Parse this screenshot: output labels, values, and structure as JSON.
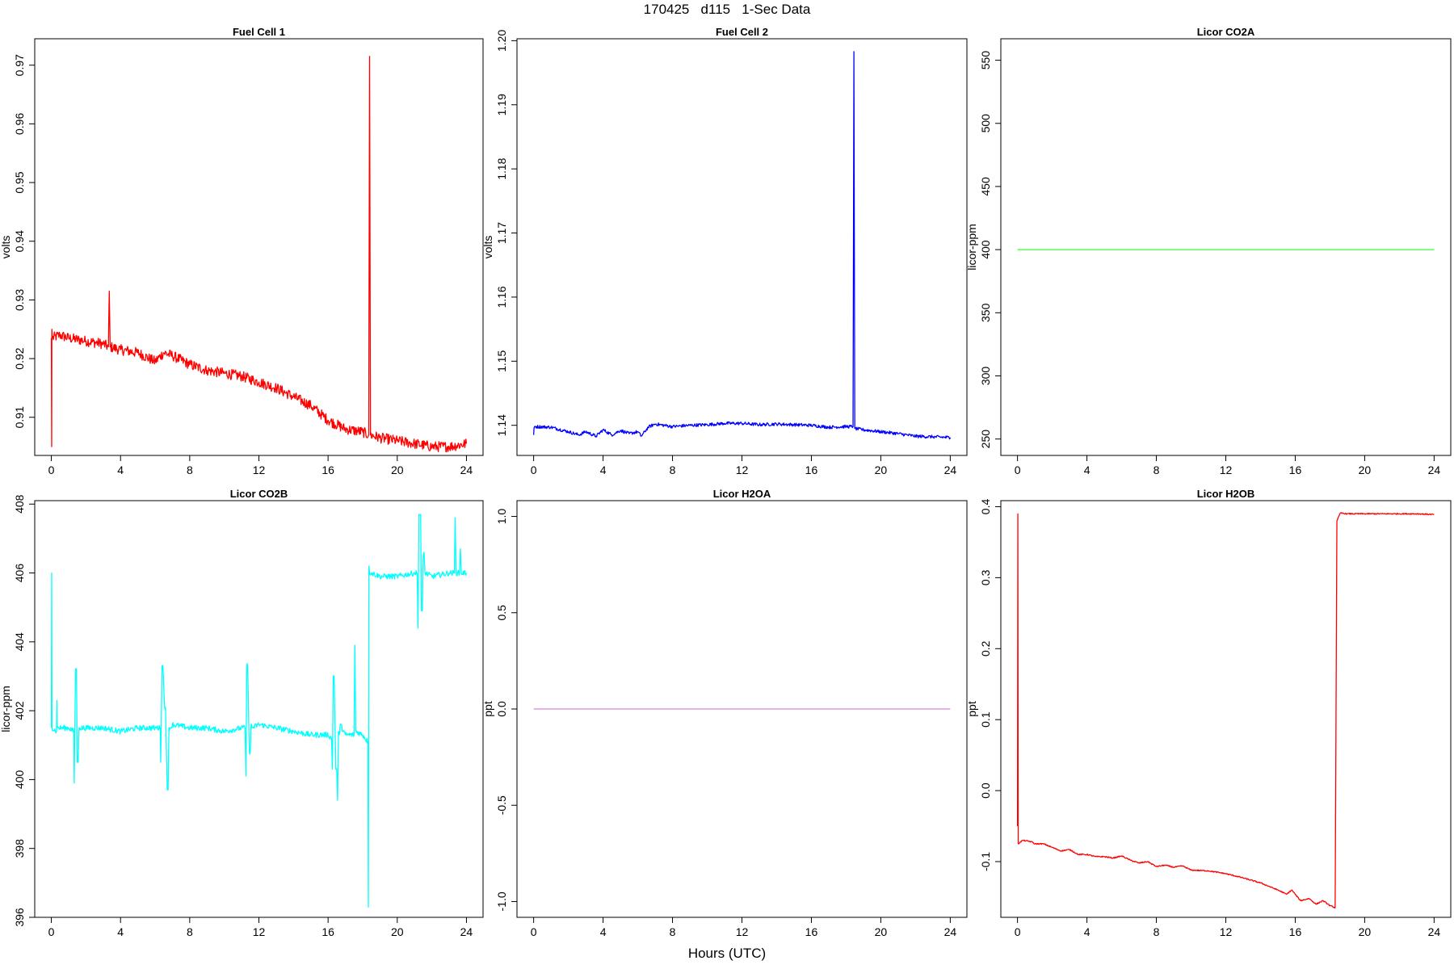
{
  "title": "170425   d115   1-Sec Data",
  "xlabel": "Hours (UTC)",
  "chart_data": [
    {
      "type": "line",
      "title": "Fuel Cell 1",
      "ylabel": "volts",
      "xlim": [
        0,
        24
      ],
      "ylim": [
        0.9035,
        0.9745
      ],
      "xticks": [
        0,
        4,
        8,
        12,
        16,
        20,
        24
      ],
      "xtick_labels": [
        "0",
        "4",
        "8",
        "12",
        "16",
        "20",
        "24"
      ],
      "yticks": [
        0.91,
        0.92,
        0.93,
        0.94,
        0.95,
        0.96,
        0.97
      ],
      "ytick_labels": [
        "0.91",
        "0.92",
        "0.93",
        "0.94",
        "0.95",
        "0.96",
        "0.97"
      ],
      "color": "#ff0000",
      "noise": 0.0009,
      "x": [
        0,
        0.02,
        0.03,
        0.05,
        0.5,
        1,
        2,
        3,
        3.3,
        3.35,
        3.4,
        4,
        5,
        6,
        6.5,
        7,
        8,
        9,
        10,
        11,
        12,
        13,
        14,
        15,
        16,
        17,
        18,
        18.35,
        18.4,
        18.45,
        19,
        20,
        21,
        22,
        23,
        24
      ],
      "y": [
        0.9235,
        0.905,
        0.925,
        0.9235,
        0.924,
        0.9235,
        0.923,
        0.9225,
        0.922,
        0.9315,
        0.922,
        0.9215,
        0.921,
        0.9195,
        0.921,
        0.9205,
        0.919,
        0.918,
        0.9175,
        0.917,
        0.916,
        0.915,
        0.9135,
        0.912,
        0.9095,
        0.908,
        0.9075,
        0.907,
        0.9715,
        0.907,
        0.9065,
        0.906,
        0.9055,
        0.905,
        0.905,
        0.9055
      ]
    },
    {
      "type": "line",
      "title": "Fuel Cell 2",
      "ylabel": "volts",
      "xlim": [
        0,
        24
      ],
      "ylim": [
        1.1353,
        1.2003
      ],
      "xticks": [
        0,
        4,
        8,
        12,
        16,
        20,
        24
      ],
      "xtick_labels": [
        "0",
        "4",
        "8",
        "12",
        "16",
        "20",
        "24"
      ],
      "yticks": [
        1.14,
        1.15,
        1.16,
        1.17,
        1.18,
        1.19,
        1.2
      ],
      "ytick_labels": [
        "1.14",
        "1.15",
        "1.16",
        "1.17",
        "1.18",
        "1.19",
        "1.20"
      ],
      "color": "#0000ff",
      "noise": 0.00025,
      "x": [
        0,
        0.02,
        0.05,
        1,
        2,
        2.6,
        3,
        3.6,
        4,
        4.5,
        5,
        5.5,
        6,
        6.2,
        6.6,
        7,
        8,
        9,
        10,
        11,
        12,
        13,
        14,
        15,
        16,
        17,
        18,
        18.4,
        18.45,
        18.5,
        19,
        20,
        21,
        22,
        23,
        24
      ],
      "y": [
        1.1385,
        1.1395,
        1.1398,
        1.1397,
        1.139,
        1.1385,
        1.139,
        1.1383,
        1.1393,
        1.1385,
        1.1392,
        1.1387,
        1.139,
        1.1383,
        1.1397,
        1.1402,
        1.1398,
        1.14,
        1.1401,
        1.1403,
        1.1403,
        1.1401,
        1.1402,
        1.1401,
        1.14,
        1.1397,
        1.1398,
        1.1398,
        1.1983,
        1.1395,
        1.1393,
        1.139,
        1.1387,
        1.1383,
        1.1382,
        1.1381
      ]
    },
    {
      "type": "line",
      "title": "Licor CO2A",
      "ylabel": "licor-ppm",
      "xlim": [
        0,
        24
      ],
      "ylim": [
        237,
        567
      ],
      "xticks": [
        0,
        4,
        8,
        12,
        16,
        20,
        24
      ],
      "xtick_labels": [
        "0",
        "4",
        "8",
        "12",
        "16",
        "20",
        "24"
      ],
      "yticks": [
        250,
        300,
        350,
        400,
        450,
        500,
        550
      ],
      "ytick_labels": [
        "250",
        "300",
        "350",
        "400",
        "450",
        "500",
        "550"
      ],
      "color": "#00ff00",
      "noise": 0,
      "x": [
        0,
        24
      ],
      "y": [
        400,
        400
      ]
    },
    {
      "type": "line",
      "title": "Licor CO2B",
      "ylabel": "licor-ppm",
      "xlim": [
        0,
        24
      ],
      "ylim": [
        396,
        408.1
      ],
      "xticks": [
        0,
        4,
        8,
        12,
        16,
        20,
        24
      ],
      "xtick_labels": [
        "0",
        "4",
        "8",
        "12",
        "16",
        "20",
        "24"
      ],
      "yticks": [
        396,
        398,
        400,
        402,
        404,
        406,
        408
      ],
      "ytick_labels": [
        "396",
        "398",
        "400",
        "402",
        "404",
        "406",
        "408"
      ],
      "color": "#00ffff",
      "noise": 0.08,
      "x": [
        0,
        0.02,
        0.04,
        0.3,
        0.32,
        0.34,
        1,
        1.3,
        1.32,
        1.4,
        1.45,
        1.5,
        1.55,
        1.6,
        1.65,
        2,
        3,
        4,
        5,
        6,
        6.3,
        6.32,
        6.4,
        6.45,
        6.55,
        6.6,
        6.7,
        6.75,
        6.8,
        6.85,
        6.9,
        7,
        8,
        9,
        10,
        11,
        11.2,
        11.25,
        11.3,
        11.35,
        11.45,
        11.5,
        11.55,
        11.6,
        12,
        13,
        14,
        15,
        16,
        16.2,
        16.25,
        16.3,
        16.35,
        16.45,
        16.5,
        16.55,
        16.6,
        16.65,
        16.7,
        17,
        17.5,
        17.55,
        17.6,
        18,
        18.3,
        18.33,
        18.36,
        18.4,
        18.5,
        19,
        20,
        21,
        21.15,
        21.2,
        21.25,
        21.35,
        21.4,
        21.45,
        21.5,
        21.55,
        21.6,
        22,
        23,
        23.3,
        23.35,
        23.4,
        23.6,
        23.65,
        23.7,
        24
      ],
      "y": [
        401.5,
        406,
        401.5,
        401.4,
        402.3,
        401.5,
        401.5,
        401.4,
        399.9,
        403.2,
        403.2,
        400.5,
        400.5,
        401.5,
        401.5,
        401.5,
        401.5,
        401.4,
        401.5,
        401.5,
        401.5,
        400.5,
        403.3,
        403.3,
        402.1,
        402.1,
        399.7,
        399.7,
        401.5,
        401.5,
        401.5,
        401.6,
        401.5,
        401.5,
        401.4,
        401.5,
        401.5,
        400.1,
        403.3,
        403.3,
        400.8,
        400.8,
        401.6,
        401.5,
        401.6,
        401.5,
        401.4,
        401.3,
        401.3,
        401.2,
        400.3,
        403,
        403,
        400.3,
        400.3,
        399.4,
        401.4,
        401.3,
        401.6,
        401.3,
        401.3,
        403.9,
        401.4,
        401.3,
        401.1,
        396.3,
        406.2,
        406,
        406,
        405.9,
        405.9,
        406,
        406,
        404.4,
        407.7,
        407.7,
        404.9,
        404.9,
        406.5,
        406.6,
        406,
        405.9,
        406,
        406,
        407.6,
        406,
        406,
        406.7,
        406,
        406
      ]
    },
    {
      "type": "line",
      "title": "Licor H2OA",
      "ylabel": "ppt",
      "xlim": [
        0,
        24
      ],
      "ylim": [
        -1.082,
        1.082
      ],
      "xticks": [
        0,
        4,
        8,
        12,
        16,
        20,
        24
      ],
      "xtick_labels": [
        "0",
        "4",
        "8",
        "12",
        "16",
        "20",
        "24"
      ],
      "yticks": [
        -1,
        -0.5,
        0,
        0.5,
        1
      ],
      "ytick_labels": [
        "-1.0",
        "-0.5",
        "0.0",
        "0.5",
        "1.0"
      ],
      "color": "#cc66cc",
      "noise": 0,
      "x": [
        0,
        24
      ],
      "y": [
        0,
        0
      ]
    },
    {
      "type": "line",
      "title": "Licor H2OB",
      "ylabel": "ppt",
      "xlim": [
        0,
        24
      ],
      "ylim": [
        -0.1785,
        0.4085
      ],
      "xticks": [
        0,
        4,
        8,
        12,
        16,
        20,
        24
      ],
      "xtick_labels": [
        "0",
        "4",
        "8",
        "12",
        "16",
        "20",
        "24"
      ],
      "yticks": [
        -0.1,
        0,
        0.1,
        0.2,
        0.3,
        0.4
      ],
      "ytick_labels": [
        "-0.1",
        "0.0",
        "0.1",
        "0.2",
        "0.3",
        "0.4"
      ],
      "color": "#ff0000",
      "noise": 0.0008,
      "x": [
        0,
        0.02,
        0.04,
        0.3,
        0.8,
        1,
        1.5,
        2,
        2.5,
        3,
        3.5,
        4,
        4.5,
        5,
        5.5,
        6,
        6.5,
        7,
        7.5,
        8,
        8.5,
        9,
        9.5,
        10,
        11,
        12,
        13,
        14,
        15,
        15.5,
        15.8,
        16,
        16.3,
        16.8,
        17.2,
        17.6,
        18,
        18.3,
        18.4,
        18.6,
        19,
        20,
        21,
        22,
        23,
        24
      ],
      "y": [
        -0.05,
        0.39,
        -0.075,
        -0.07,
        -0.072,
        -0.075,
        -0.075,
        -0.08,
        -0.085,
        -0.083,
        -0.09,
        -0.09,
        -0.093,
        -0.093,
        -0.095,
        -0.092,
        -0.098,
        -0.102,
        -0.1,
        -0.107,
        -0.105,
        -0.108,
        -0.106,
        -0.112,
        -0.113,
        -0.117,
        -0.123,
        -0.13,
        -0.14,
        -0.146,
        -0.14,
        -0.146,
        -0.155,
        -0.152,
        -0.16,
        -0.155,
        -0.162,
        -0.165,
        0.38,
        0.391,
        0.39,
        0.39,
        0.39,
        0.39,
        0.39,
        0.389
      ]
    }
  ]
}
